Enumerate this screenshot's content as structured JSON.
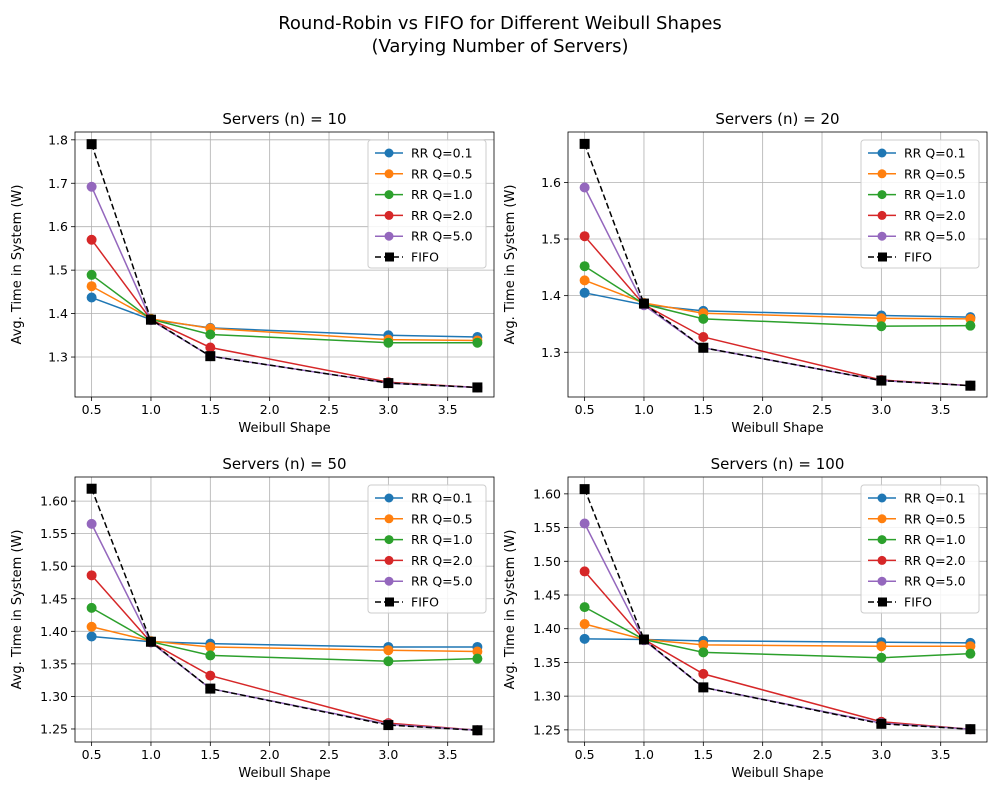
{
  "figure": {
    "title_line1": "Round-Robin vs FIFO for Different Weibull Shapes",
    "title_line2": "(Varying Number of Servers)"
  },
  "colors": {
    "RR Q=0.1": "#1f77b4",
    "RR Q=0.5": "#ff7f0e",
    "RR Q=1.0": "#2ca02c",
    "RR Q=2.0": "#d62728",
    "RR Q=5.0": "#9467bd",
    "FIFO": "#000000",
    "grid": "#b0b0b0"
  },
  "chart_data": [
    {
      "type": "line",
      "title": "Servers (n) = 10",
      "xlabel": "Weibull Shape",
      "ylabel": "Avg. Time in System (W)",
      "x": [
        0.5,
        1.0,
        1.5,
        3.0,
        3.75
      ],
      "xlim": [
        0.36,
        3.89
      ],
      "ylim": [
        1.208,
        1.818
      ],
      "xticks": [
        0.5,
        1.0,
        1.5,
        2.0,
        2.5,
        3.0,
        3.5
      ],
      "xtick_labels": [
        "0.5",
        "1.0",
        "1.5",
        "2.0",
        "2.5",
        "3.0",
        "3.5"
      ],
      "yticks": [
        1.3,
        1.4,
        1.5,
        1.6,
        1.7,
        1.8
      ],
      "ytick_labels": [
        "1.3",
        "1.4",
        "1.5",
        "1.6",
        "1.7",
        "1.8"
      ],
      "grid": true,
      "legend_position": "upper right",
      "series": [
        {
          "name": "RR Q=0.1",
          "values": [
            1.437,
            1.386,
            1.367,
            1.35,
            1.346
          ]
        },
        {
          "name": "RR Q=0.5",
          "values": [
            1.463,
            1.388,
            1.366,
            1.34,
            1.338
          ]
        },
        {
          "name": "RR Q=1.0",
          "values": [
            1.489,
            1.387,
            1.352,
            1.333,
            1.333
          ]
        },
        {
          "name": "RR Q=2.0",
          "values": [
            1.57,
            1.386,
            1.322,
            1.242,
            1.23
          ]
        },
        {
          "name": "RR Q=5.0",
          "values": [
            1.692,
            1.385,
            1.302,
            1.24,
            1.23
          ]
        },
        {
          "name": "FIFO",
          "values": [
            1.79,
            1.386,
            1.302,
            1.24,
            1.23
          ]
        }
      ]
    },
    {
      "type": "line",
      "title": "Servers (n) = 20",
      "xlabel": "Weibull Shape",
      "ylabel": "Avg. Time in System (W)",
      "x": [
        0.5,
        1.0,
        1.5,
        3.0,
        3.75
      ],
      "xlim": [
        0.36,
        3.89
      ],
      "ylim": [
        1.221,
        1.689
      ],
      "xticks": [
        0.5,
        1.0,
        1.5,
        2.0,
        2.5,
        3.0,
        3.5
      ],
      "xtick_labels": [
        "0.5",
        "1.0",
        "1.5",
        "2.0",
        "2.5",
        "3.0",
        "3.5"
      ],
      "yticks": [
        1.3,
        1.4,
        1.5,
        1.6
      ],
      "ytick_labels": [
        "1.3",
        "1.4",
        "1.5",
        "1.6"
      ],
      "grid": true,
      "legend_position": "upper right",
      "series": [
        {
          "name": "RR Q=0.1",
          "values": [
            1.405,
            1.384,
            1.373,
            1.365,
            1.362
          ]
        },
        {
          "name": "RR Q=0.5",
          "values": [
            1.427,
            1.387,
            1.369,
            1.36,
            1.359
          ]
        },
        {
          "name": "RR Q=1.0",
          "values": [
            1.452,
            1.385,
            1.359,
            1.346,
            1.347
          ]
        },
        {
          "name": "RR Q=2.0",
          "values": [
            1.505,
            1.384,
            1.327,
            1.251,
            1.241
          ]
        },
        {
          "name": "RR Q=5.0",
          "values": [
            1.591,
            1.383,
            1.308,
            1.25,
            1.241
          ]
        },
        {
          "name": "FIFO",
          "values": [
            1.668,
            1.386,
            1.308,
            1.25,
            1.241
          ]
        }
      ]
    },
    {
      "type": "line",
      "title": "Servers (n) = 50",
      "xlabel": "Weibull Shape",
      "ylabel": "Avg. Time in System (W)",
      "x": [
        0.5,
        1.0,
        1.5,
        3.0,
        3.75
      ],
      "xlim": [
        0.36,
        3.89
      ],
      "ylim": [
        1.23,
        1.637
      ],
      "xticks": [
        0.5,
        1.0,
        1.5,
        2.0,
        2.5,
        3.0,
        3.5
      ],
      "xtick_labels": [
        "0.5",
        "1.0",
        "1.5",
        "2.0",
        "2.5",
        "3.0",
        "3.5"
      ],
      "yticks": [
        1.25,
        1.3,
        1.35,
        1.4,
        1.45,
        1.5,
        1.55,
        1.6
      ],
      "ytick_labels": [
        "1.25",
        "1.30",
        "1.35",
        "1.40",
        "1.45",
        "1.50",
        "1.55",
        "1.60"
      ],
      "grid": true,
      "legend_position": "upper right",
      "series": [
        {
          "name": "RR Q=0.1",
          "values": [
            1.392,
            1.384,
            1.381,
            1.376,
            1.376
          ]
        },
        {
          "name": "RR Q=0.5",
          "values": [
            1.407,
            1.385,
            1.376,
            1.371,
            1.369
          ]
        },
        {
          "name": "RR Q=1.0",
          "values": [
            1.436,
            1.384,
            1.363,
            1.354,
            1.358
          ]
        },
        {
          "name": "RR Q=2.0",
          "values": [
            1.486,
            1.383,
            1.332,
            1.259,
            1.248
          ]
        },
        {
          "name": "RR Q=5.0",
          "values": [
            1.565,
            1.383,
            1.312,
            1.257,
            1.248
          ]
        },
        {
          "name": "FIFO",
          "values": [
            1.619,
            1.384,
            1.312,
            1.256,
            1.248
          ]
        }
      ]
    },
    {
      "type": "line",
      "title": "Servers (n) = 100",
      "xlabel": "Weibull Shape",
      "ylabel": "Avg. Time in System (W)",
      "x": [
        0.5,
        1.0,
        1.5,
        3.0,
        3.75
      ],
      "xlim": [
        0.36,
        3.89
      ],
      "ylim": [
        1.232,
        1.625
      ],
      "xticks": [
        0.5,
        1.0,
        1.5,
        2.0,
        2.5,
        3.0,
        3.5
      ],
      "xtick_labels": [
        "0.5",
        "1.0",
        "1.5",
        "2.0",
        "2.5",
        "3.0",
        "3.5"
      ],
      "yticks": [
        1.25,
        1.3,
        1.35,
        1.4,
        1.45,
        1.5,
        1.55,
        1.6
      ],
      "ytick_labels": [
        "1.25",
        "1.30",
        "1.35",
        "1.40",
        "1.45",
        "1.50",
        "1.55",
        "1.60"
      ],
      "grid": true,
      "legend_position": "upper right",
      "series": [
        {
          "name": "RR Q=0.1",
          "values": [
            1.385,
            1.384,
            1.382,
            1.38,
            1.379
          ]
        },
        {
          "name": "RR Q=0.5",
          "values": [
            1.407,
            1.384,
            1.376,
            1.374,
            1.374
          ]
        },
        {
          "name": "RR Q=1.0",
          "values": [
            1.432,
            1.384,
            1.365,
            1.357,
            1.363
          ]
        },
        {
          "name": "RR Q=2.0",
          "values": [
            1.485,
            1.384,
            1.333,
            1.262,
            1.251
          ]
        },
        {
          "name": "RR Q=5.0",
          "values": [
            1.556,
            1.383,
            1.313,
            1.26,
            1.251
          ]
        },
        {
          "name": "FIFO",
          "values": [
            1.607,
            1.384,
            1.313,
            1.259,
            1.251
          ]
        }
      ]
    }
  ]
}
